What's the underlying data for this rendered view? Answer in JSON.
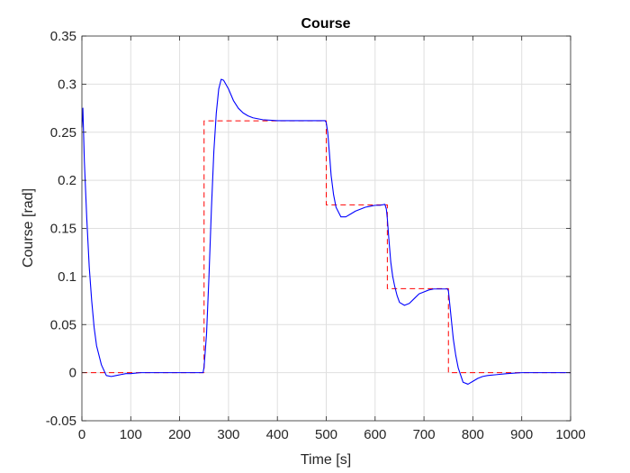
{
  "chart_data": {
    "type": "line",
    "title": "Course",
    "xlabel": "Time [s]",
    "ylabel": "Course [rad]",
    "xlim": [
      0,
      1000
    ],
    "ylim": [
      -0.05,
      0.35
    ],
    "xticks": [
      0,
      100,
      200,
      300,
      400,
      500,
      600,
      700,
      800,
      900,
      1000
    ],
    "yticks": [
      -0.05,
      0,
      0.05,
      0.1,
      0.15,
      0.2,
      0.25,
      0.3,
      0.35
    ],
    "xtick_labels": [
      "0",
      "100",
      "200",
      "300",
      "400",
      "500",
      "600",
      "700",
      "800",
      "900",
      "1000"
    ],
    "ytick_labels": [
      "-0.05",
      "0",
      "0.05",
      "0.1",
      "0.15",
      "0.2",
      "0.25",
      "0.3",
      "0.35"
    ],
    "grid": true,
    "series": [
      {
        "style": "solid",
        "color": "#0000ff",
        "x": [
          0,
          2,
          5,
          10,
          15,
          20,
          25,
          30,
          40,
          50,
          60,
          70,
          80,
          90,
          100,
          120,
          150,
          200,
          248,
          250,
          255,
          260,
          265,
          270,
          275,
          280,
          285,
          290,
          300,
          310,
          320,
          330,
          340,
          350,
          370,
          400,
          450,
          498,
          500,
          503,
          507,
          510,
          515,
          520,
          530,
          540,
          550,
          560,
          570,
          580,
          590,
          600,
          610,
          620,
          623,
          625,
          628,
          632,
          636,
          640,
          645,
          650,
          660,
          670,
          680,
          690,
          700,
          710,
          720,
          730,
          740,
          748,
          750,
          753,
          757,
          760,
          765,
          770,
          780,
          790,
          800,
          810,
          820,
          830,
          850,
          870,
          900,
          950,
          1000
        ],
        "y": [
          0.255,
          0.275,
          0.22,
          0.16,
          0.11,
          0.075,
          0.047,
          0.028,
          0.008,
          -0.003,
          -0.004,
          -0.003,
          -0.002,
          -0.001,
          -0.001,
          0.0,
          0.0,
          0.0,
          0.0,
          0.006,
          0.04,
          0.1,
          0.17,
          0.23,
          0.27,
          0.295,
          0.305,
          0.304,
          0.295,
          0.283,
          0.275,
          0.27,
          0.267,
          0.265,
          0.263,
          0.262,
          0.262,
          0.262,
          0.26,
          0.25,
          0.225,
          0.205,
          0.185,
          0.172,
          0.162,
          0.162,
          0.165,
          0.168,
          0.17,
          0.172,
          0.173,
          0.174,
          0.174,
          0.175,
          0.17,
          0.16,
          0.14,
          0.115,
          0.1,
          0.09,
          0.08,
          0.073,
          0.07,
          0.072,
          0.077,
          0.082,
          0.084,
          0.086,
          0.087,
          0.087,
          0.087,
          0.087,
          0.085,
          0.07,
          0.05,
          0.035,
          0.018,
          0.005,
          -0.01,
          -0.012,
          -0.009,
          -0.006,
          -0.004,
          -0.003,
          -0.002,
          -0.001,
          0.0,
          0.0,
          0.0
        ]
      },
      {
        "style": "dashed",
        "color": "#ff0000",
        "x": [
          0,
          250,
          250,
          500,
          500,
          625,
          625,
          750,
          750,
          1000
        ],
        "y": [
          0,
          0,
          0.2618,
          0.2618,
          0.1745,
          0.1745,
          0.0873,
          0.0873,
          0,
          0
        ]
      }
    ]
  }
}
